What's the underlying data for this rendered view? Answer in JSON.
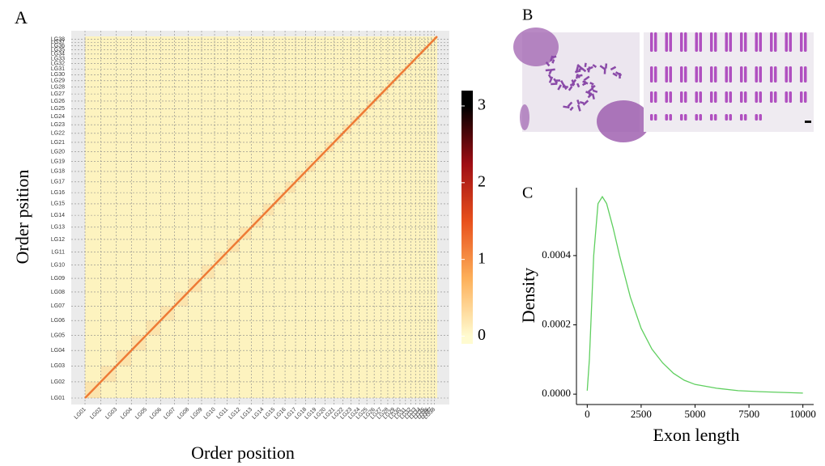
{
  "chart_data": [
    {
      "type": "heatmap",
      "panel_label": "A",
      "x_label": "Order position",
      "y_label": "Order psition",
      "categories": [
        "LG01",
        "LG02",
        "LG03",
        "LG04",
        "LG05",
        "LG06",
        "LG07",
        "LG08",
        "LG09",
        "LG10",
        "LG11",
        "LG12",
        "LG13",
        "LG14",
        "LG15",
        "LG16",
        "LG17",
        "LG18",
        "LG19",
        "LG20",
        "LG21",
        "LG22",
        "LG23",
        "LG24",
        "LG25",
        "LG26",
        "LG27",
        "LG28",
        "LG29",
        "LG30",
        "LG31",
        "LG32",
        "LG33",
        "LG34",
        "LG35",
        "LG36",
        "LG37",
        "LG38"
      ],
      "colorbar": {
        "ylim": [
          -0.1,
          3.2
        ],
        "yticks": [
          0,
          1,
          2,
          3
        ],
        "colors": [
          "#fffbd0",
          "#fdb05a",
          "#e8501c",
          "#9e0d14",
          "#000000"
        ]
      },
      "background": "#fdf3bf",
      "diagonal_color": "#ee7a35"
    },
    {
      "type": "line",
      "panel_label": "C",
      "x_label": "Exon length",
      "y_label": "Density",
      "xlim": [
        -500,
        10500
      ],
      "xticks": [
        0,
        2500,
        5000,
        7500,
        10000
      ],
      "ylim": [
        -3e-05,
        0.000596
      ],
      "yticks": [
        {
          "value": 0,
          "label": "0.0000"
        },
        {
          "value": 0.0002,
          "label": "0.0002"
        },
        {
          "value": 0.0004,
          "label": "0.0004"
        }
      ],
      "x": [
        0,
        100,
        300,
        500,
        700,
        900,
        1200,
        1500,
        2000,
        2500,
        3000,
        3500,
        4000,
        4500,
        5000,
        6000,
        7000,
        8000,
        9000,
        10000
      ],
      "series": [
        {
          "name": "Density",
          "color": "#5fcf5f",
          "values": [
            1e-05,
            0.0001,
            0.0004,
            0.00055,
            0.00057,
            0.00055,
            0.00048,
            0.0004,
            0.00028,
            0.00019,
            0.00013,
            9e-05,
            6e-05,
            4e-05,
            2.8e-05,
            1.7e-05,
            1e-05,
            7e-06,
            5e-06,
            3e-06
          ]
        }
      ]
    }
  ],
  "image_panel": {
    "panel_label": "B"
  }
}
